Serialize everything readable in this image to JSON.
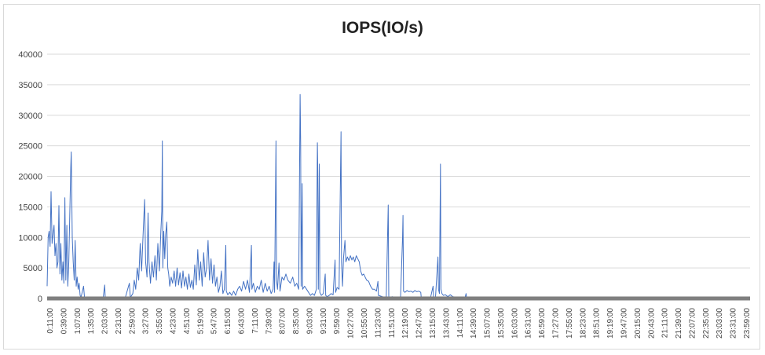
{
  "chart_data": {
    "type": "line",
    "title": "IOPS(IO/s)",
    "xlabel": "",
    "ylabel": "",
    "ylim": [
      0,
      40000
    ],
    "y_ticks": [
      0,
      5000,
      10000,
      15000,
      20000,
      25000,
      30000,
      35000,
      40000
    ],
    "x_tick_labels": [
      "0:11:00",
      "0:39:00",
      "1:07:00",
      "1:35:00",
      "2:03:00",
      "2:31:00",
      "2:59:00",
      "3:27:00",
      "3:55:00",
      "4:23:00",
      "4:51:00",
      "5:19:00",
      "5:47:00",
      "6:15:00",
      "6:43:00",
      "7:11:00",
      "7:39:00",
      "8:07:00",
      "8:35:00",
      "9:03:00",
      "9:31:00",
      "9:59:00",
      "10:27:00",
      "10:55:00",
      "11:23:00",
      "11:51:00",
      "12:19:00",
      "12:47:00",
      "13:15:00",
      "13:43:00",
      "14:11:00",
      "14:39:00",
      "15:07:00",
      "15:35:00",
      "16:03:00",
      "16:31:00",
      "16:59:00",
      "17:27:00",
      "17:55:00",
      "18:23:00",
      "18:51:00",
      "19:19:00",
      "19:47:00",
      "20:15:00",
      "20:43:00",
      "21:11:00",
      "21:39:00",
      "22:07:00",
      "22:35:00",
      "23:03:00",
      "23:31:00",
      "23:59:00"
    ],
    "x_range_minutes": [
      11,
      1439
    ],
    "grid": true,
    "line_color": "#4472c4",
    "baseline_color": "#7f7f7f",
    "series": [
      {
        "values": [
          [
            11,
            2000
          ],
          [
            13,
            10000
          ],
          [
            15,
            11000
          ],
          [
            17,
            8500
          ],
          [
            19,
            17500
          ],
          [
            21,
            9000
          ],
          [
            23,
            10500
          ],
          [
            25,
            12000
          ],
          [
            27,
            7000
          ],
          [
            29,
            9000
          ],
          [
            31,
            5000
          ],
          [
            33,
            6000
          ],
          [
            35,
            15200
          ],
          [
            37,
            4000
          ],
          [
            39,
            9000
          ],
          [
            41,
            3000
          ],
          [
            43,
            6000
          ],
          [
            45,
            2500
          ],
          [
            47,
            16500
          ],
          [
            49,
            3000
          ],
          [
            51,
            12000
          ],
          [
            53,
            2000
          ],
          [
            55,
            6000
          ],
          [
            57,
            13500
          ],
          [
            59,
            21500
          ],
          [
            60,
            24000
          ],
          [
            62,
            10000
          ],
          [
            64,
            6000
          ],
          [
            66,
            3000
          ],
          [
            68,
            9500
          ],
          [
            70,
            2000
          ],
          [
            72,
            3500
          ],
          [
            74,
            1500
          ],
          [
            76,
            2500
          ],
          [
            78,
            500
          ],
          [
            80,
            200
          ],
          [
            85,
            2000
          ],
          [
            87,
            150
          ],
          [
            100,
            100
          ],
          [
            110,
            200
          ],
          [
            125,
            150
          ],
          [
            128,
            2200
          ],
          [
            129,
            100
          ],
          [
            150,
            100
          ],
          [
            170,
            200
          ],
          [
            178,
            2500
          ],
          [
            180,
            150
          ],
          [
            185,
            800
          ],
          [
            188,
            3000
          ],
          [
            191,
            1500
          ],
          [
            194,
            5000
          ],
          [
            197,
            3000
          ],
          [
            200,
            9000
          ],
          [
            203,
            4500
          ],
          [
            206,
            10500
          ],
          [
            209,
            16200
          ],
          [
            211,
            6000
          ],
          [
            214,
            3500
          ],
          [
            216,
            14000
          ],
          [
            218,
            6000
          ],
          [
            221,
            2500
          ],
          [
            224,
            6000
          ],
          [
            227,
            3500
          ],
          [
            230,
            7000
          ],
          [
            233,
            3000
          ],
          [
            236,
            9000
          ],
          [
            239,
            4500
          ],
          [
            242,
            11000
          ],
          [
            244,
            14300
          ],
          [
            245,
            25800
          ],
          [
            246,
            5000
          ],
          [
            248,
            11000
          ],
          [
            250,
            6500
          ],
          [
            252,
            10500
          ],
          [
            254,
            12500
          ],
          [
            256,
            5000
          ],
          [
            258,
            4000
          ],
          [
            260,
            2000
          ],
          [
            263,
            3500
          ],
          [
            266,
            2500
          ],
          [
            269,
            4500
          ],
          [
            272,
            2000
          ],
          [
            275,
            5000
          ],
          [
            278,
            2200
          ],
          [
            281,
            4200
          ],
          [
            284,
            1700
          ],
          [
            287,
            4500
          ],
          [
            290,
            2000
          ],
          [
            293,
            3500
          ],
          [
            296,
            1500
          ],
          [
            299,
            4000
          ],
          [
            302,
            1800
          ],
          [
            305,
            3000
          ],
          [
            308,
            1500
          ],
          [
            311,
            5500
          ],
          [
            314,
            2200
          ],
          [
            317,
            8000
          ],
          [
            320,
            3000
          ],
          [
            323,
            6000
          ],
          [
            326,
            2000
          ],
          [
            329,
            7500
          ],
          [
            332,
            3500
          ],
          [
            335,
            5000
          ],
          [
            338,
            9500
          ],
          [
            341,
            3000
          ],
          [
            344,
            6500
          ],
          [
            347,
            2500
          ],
          [
            350,
            5500
          ],
          [
            353,
            2000
          ],
          [
            356,
            3500
          ],
          [
            359,
            1000
          ],
          [
            362,
            2000
          ],
          [
            365,
            4500
          ],
          [
            368,
            800
          ],
          [
            371,
            1500
          ],
          [
            374,
            8700
          ],
          [
            375,
            1200
          ],
          [
            378,
            600
          ],
          [
            382,
            1000
          ],
          [
            386,
            500
          ],
          [
            390,
            1200
          ],
          [
            394,
            500
          ],
          [
            398,
            1500
          ],
          [
            402,
            2000
          ],
          [
            406,
            1200
          ],
          [
            410,
            2800
          ],
          [
            414,
            1500
          ],
          [
            418,
            3000
          ],
          [
            422,
            1000
          ],
          [
            426,
            8700
          ],
          [
            427,
            1500
          ],
          [
            430,
            2500
          ],
          [
            434,
            1000
          ],
          [
            438,
            2000
          ],
          [
            442,
            1500
          ],
          [
            446,
            3000
          ],
          [
            450,
            1000
          ],
          [
            454,
            2500
          ],
          [
            458,
            1200
          ],
          [
            462,
            2000
          ],
          [
            466,
            800
          ],
          [
            470,
            1500
          ],
          [
            472,
            6000
          ],
          [
            473,
            1000
          ],
          [
            476,
            25800
          ],
          [
            477,
            3000
          ],
          [
            479,
            1500
          ],
          [
            482,
            5800
          ],
          [
            484,
            1200
          ],
          [
            488,
            3500
          ],
          [
            492,
            3000
          ],
          [
            496,
            4000
          ],
          [
            500,
            3000
          ],
          [
            505,
            2500
          ],
          [
            510,
            3500
          ],
          [
            514,
            2000
          ],
          [
            518,
            2500
          ],
          [
            522,
            1500
          ],
          [
            525,
            33400
          ],
          [
            526,
            25500
          ],
          [
            527,
            2000
          ],
          [
            529,
            18800
          ],
          [
            530,
            1500
          ],
          [
            534,
            2000
          ],
          [
            538,
            1500
          ],
          [
            542,
            1000
          ],
          [
            546,
            500
          ],
          [
            550,
            800
          ],
          [
            554,
            500
          ],
          [
            558,
            1500
          ],
          [
            560,
            25500
          ],
          [
            561,
            20500
          ],
          [
            562,
            1500
          ],
          [
            564,
            22000
          ],
          [
            565,
            1000
          ],
          [
            568,
            500
          ],
          [
            572,
            800
          ],
          [
            576,
            4000
          ],
          [
            577,
            500
          ],
          [
            580,
            300
          ],
          [
            584,
            500
          ],
          [
            588,
            800
          ],
          [
            592,
            600
          ],
          [
            596,
            6300
          ],
          [
            597,
            1000
          ],
          [
            600,
            1800
          ],
          [
            604,
            1500
          ],
          [
            608,
            27300
          ],
          [
            609,
            6000
          ],
          [
            611,
            2000
          ],
          [
            613,
            6500
          ],
          [
            616,
            9500
          ],
          [
            618,
            6000
          ],
          [
            621,
            6800
          ],
          [
            624,
            6200
          ],
          [
            627,
            7000
          ],
          [
            630,
            6300
          ],
          [
            633,
            6800
          ],
          [
            636,
            6000
          ],
          [
            639,
            7000
          ],
          [
            642,
            6500
          ],
          [
            645,
            6000
          ],
          [
            648,
            4500
          ],
          [
            651,
            3800
          ],
          [
            654,
            4000
          ],
          [
            657,
            3500
          ],
          [
            660,
            3000
          ],
          [
            664,
            2800
          ],
          [
            668,
            2000
          ],
          [
            672,
            1500
          ],
          [
            676,
            1500
          ],
          [
            680,
            1200
          ],
          [
            683,
            2800
          ],
          [
            684,
            500
          ],
          [
            688,
            400
          ],
          [
            692,
            300
          ],
          [
            696,
            200
          ],
          [
            700,
            300
          ],
          [
            704,
            15300
          ],
          [
            705,
            300
          ],
          [
            708,
            200
          ],
          [
            712,
            300
          ],
          [
            716,
            200
          ],
          [
            720,
            150
          ],
          [
            725,
            200
          ],
          [
            729,
            300
          ],
          [
            733,
            9800
          ],
          [
            734,
            13600
          ],
          [
            735,
            1200
          ],
          [
            738,
            1000
          ],
          [
            742,
            1300
          ],
          [
            746,
            1100
          ],
          [
            750,
            1200
          ],
          [
            754,
            1000
          ],
          [
            758,
            1300
          ],
          [
            762,
            1100
          ],
          [
            766,
            1200
          ],
          [
            770,
            1000
          ],
          [
            771,
            200
          ],
          [
            775,
            150
          ],
          [
            780,
            100
          ],
          [
            790,
            150
          ],
          [
            795,
            2000
          ],
          [
            796,
            100
          ],
          [
            800,
            200
          ],
          [
            805,
            6800
          ],
          [
            806,
            1500
          ],
          [
            808,
            800
          ],
          [
            810,
            22000
          ],
          [
            811,
            1500
          ],
          [
            813,
            800
          ],
          [
            816,
            500
          ],
          [
            820,
            600
          ],
          [
            825,
            300
          ],
          [
            830,
            600
          ],
          [
            835,
            300
          ],
          [
            840,
            250
          ],
          [
            845,
            200
          ],
          [
            850,
            250
          ],
          [
            855,
            150
          ],
          [
            860,
            100
          ],
          [
            862,
            800
          ],
          [
            863,
            100
          ],
          [
            870,
            80
          ],
          [
            880,
            50
          ],
          [
            900,
            50
          ],
          [
            930,
            40
          ],
          [
            960,
            30
          ],
          [
            1000,
            30
          ],
          [
            1050,
            20
          ],
          [
            1100,
            20
          ],
          [
            1200,
            20
          ],
          [
            1300,
            20
          ],
          [
            1439,
            20
          ]
        ]
      }
    ]
  }
}
